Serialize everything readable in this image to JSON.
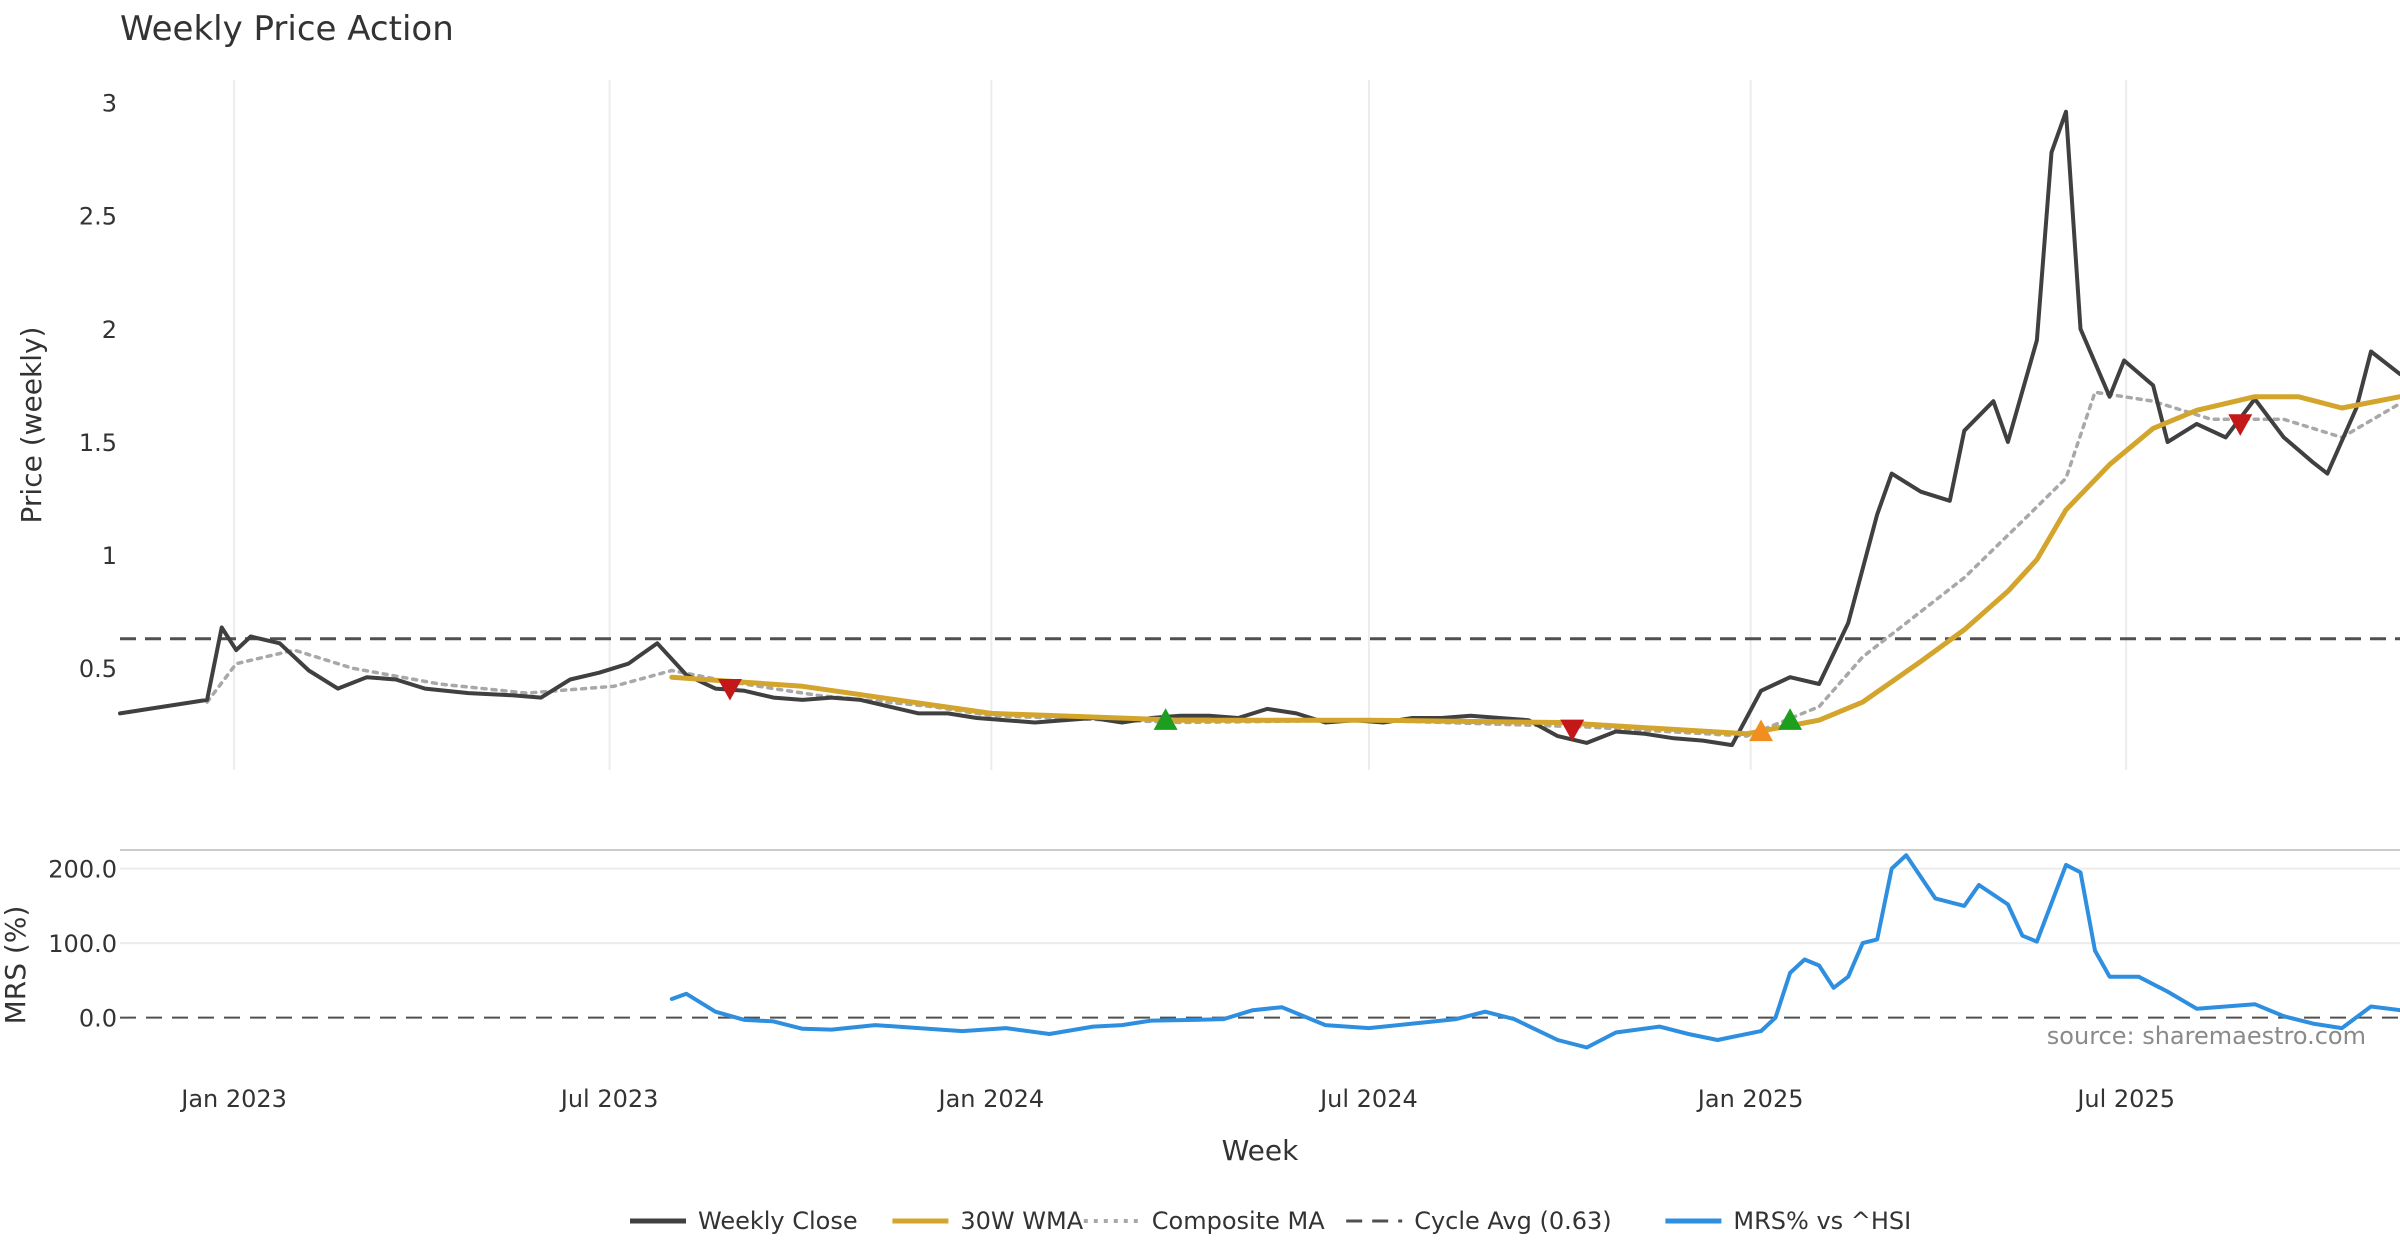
{
  "chart_data": {
    "type": "line",
    "title": "Weekly Price Action",
    "source": "source: sharemaestro.com",
    "x_axis": {
      "label": "Week",
      "range": [
        "2022-11-07",
        "2025-11-10"
      ],
      "ticks": [
        {
          "date": "2023-01-01",
          "label": "Jan 2023"
        },
        {
          "date": "2023-07-01",
          "label": "Jul 2023"
        },
        {
          "date": "2024-01-01",
          "label": "Jan 2024"
        },
        {
          "date": "2024-07-01",
          "label": "Jul 2024"
        },
        {
          "date": "2025-01-01",
          "label": "Jan 2025"
        },
        {
          "date": "2025-07-01",
          "label": "Jul 2025"
        }
      ]
    },
    "price_panel": {
      "ylabel": "Price (weekly)",
      "ylim": [
        0.05,
        3.1
      ],
      "yticks": [
        {
          "v": 0.5,
          "label": "0.5"
        },
        {
          "v": 1,
          "label": "1"
        },
        {
          "v": 1.5,
          "label": "1.5"
        },
        {
          "v": 2,
          "label": "2"
        },
        {
          "v": 2.5,
          "label": "2.5"
        },
        {
          "v": 3,
          "label": "3"
        }
      ],
      "cycle_avg": 0.63,
      "series": [
        {
          "name": "Weekly Close",
          "color": "#404040",
          "style": "solid",
          "points": [
            [
              "2022-11-07",
              0.3
            ],
            [
              "2022-11-21",
              0.32
            ],
            [
              "2022-12-05",
              0.34
            ],
            [
              "2022-12-19",
              0.36
            ],
            [
              "2022-12-26",
              0.68
            ],
            [
              "2023-01-02",
              0.58
            ],
            [
              "2023-01-09",
              0.64
            ],
            [
              "2023-01-23",
              0.61
            ],
            [
              "2023-02-06",
              0.49
            ],
            [
              "2023-02-20",
              0.41
            ],
            [
              "2023-03-06",
              0.46
            ],
            [
              "2023-03-20",
              0.45
            ],
            [
              "2023-04-03",
              0.41
            ],
            [
              "2023-04-24",
              0.39
            ],
            [
              "2023-05-15",
              0.38
            ],
            [
              "2023-05-29",
              0.37
            ],
            [
              "2023-06-12",
              0.45
            ],
            [
              "2023-06-26",
              0.48
            ],
            [
              "2023-07-10",
              0.52
            ],
            [
              "2023-07-24",
              0.61
            ],
            [
              "2023-08-07",
              0.47
            ],
            [
              "2023-08-21",
              0.41
            ],
            [
              "2023-09-04",
              0.4
            ],
            [
              "2023-09-18",
              0.37
            ],
            [
              "2023-10-02",
              0.36
            ],
            [
              "2023-10-16",
              0.37
            ],
            [
              "2023-10-30",
              0.36
            ],
            [
              "2023-11-13",
              0.33
            ],
            [
              "2023-11-27",
              0.3
            ],
            [
              "2023-12-11",
              0.3
            ],
            [
              "2023-12-25",
              0.28
            ],
            [
              "2024-01-08",
              0.27
            ],
            [
              "2024-01-22",
              0.26
            ],
            [
              "2024-02-05",
              0.27
            ],
            [
              "2024-02-19",
              0.28
            ],
            [
              "2024-03-04",
              0.26
            ],
            [
              "2024-03-18",
              0.28
            ],
            [
              "2024-04-01",
              0.29
            ],
            [
              "2024-04-15",
              0.29
            ],
            [
              "2024-04-29",
              0.28
            ],
            [
              "2024-05-13",
              0.32
            ],
            [
              "2024-05-27",
              0.3
            ],
            [
              "2024-06-10",
              0.26
            ],
            [
              "2024-06-24",
              0.27
            ],
            [
              "2024-07-08",
              0.26
            ],
            [
              "2024-07-22",
              0.28
            ],
            [
              "2024-08-05",
              0.28
            ],
            [
              "2024-08-19",
              0.29
            ],
            [
              "2024-09-02",
              0.28
            ],
            [
              "2024-09-16",
              0.27
            ],
            [
              "2024-09-30",
              0.2
            ],
            [
              "2024-10-14",
              0.17
            ],
            [
              "2024-10-28",
              0.22
            ],
            [
              "2024-11-11",
              0.21
            ],
            [
              "2024-11-25",
              0.19
            ],
            [
              "2024-12-09",
              0.18
            ],
            [
              "2024-12-23",
              0.16
            ],
            [
              "2025-01-06",
              0.4
            ],
            [
              "2025-01-20",
              0.46
            ],
            [
              "2025-02-03",
              0.43
            ],
            [
              "2025-02-17",
              0.7
            ],
            [
              "2025-03-03",
              1.18
            ],
            [
              "2025-03-10",
              1.36
            ],
            [
              "2025-03-24",
              1.28
            ],
            [
              "2025-04-07",
              1.24
            ],
            [
              "2025-04-14",
              1.55
            ],
            [
              "2025-04-28",
              1.68
            ],
            [
              "2025-05-05",
              1.5
            ],
            [
              "2025-05-19",
              1.95
            ],
            [
              "2025-05-26",
              2.78
            ],
            [
              "2025-06-02",
              2.96
            ],
            [
              "2025-06-09",
              2.0
            ],
            [
              "2025-06-23",
              1.7
            ],
            [
              "2025-06-30",
              1.86
            ],
            [
              "2025-07-14",
              1.75
            ],
            [
              "2025-07-21",
              1.5
            ],
            [
              "2025-08-04",
              1.58
            ],
            [
              "2025-08-18",
              1.52
            ],
            [
              "2025-09-01",
              1.69
            ],
            [
              "2025-09-15",
              1.52
            ],
            [
              "2025-09-29",
              1.41
            ],
            [
              "2025-10-06",
              1.36
            ],
            [
              "2025-10-20",
              1.65
            ],
            [
              "2025-10-27",
              1.9
            ],
            [
              "2025-11-10",
              1.8
            ]
          ]
        },
        {
          "name": "30W WMA",
          "color": "#d4a52c",
          "style": "solid",
          "points": [
            [
              "2023-07-31",
              0.46
            ],
            [
              "2023-10-02",
              0.42
            ],
            [
              "2024-01-01",
              0.3
            ],
            [
              "2024-04-01",
              0.27
            ],
            [
              "2024-07-01",
              0.27
            ],
            [
              "2024-10-01",
              0.26
            ],
            [
              "2024-12-30",
              0.21
            ],
            [
              "2025-02-03",
              0.27
            ],
            [
              "2025-02-24",
              0.35
            ],
            [
              "2025-03-24",
              0.53
            ],
            [
              "2025-04-14",
              0.67
            ],
            [
              "2025-05-05",
              0.84
            ],
            [
              "2025-05-19",
              0.98
            ],
            [
              "2025-06-02",
              1.2
            ],
            [
              "2025-06-23",
              1.4
            ],
            [
              "2025-07-14",
              1.56
            ],
            [
              "2025-08-04",
              1.64
            ],
            [
              "2025-09-01",
              1.7
            ],
            [
              "2025-09-22",
              1.7
            ],
            [
              "2025-10-13",
              1.65
            ],
            [
              "2025-11-10",
              1.7
            ]
          ]
        },
        {
          "name": "Composite MA",
          "color": "#a8a8a8",
          "style": "dotted",
          "points": [
            [
              "2022-12-19",
              0.35
            ],
            [
              "2023-01-02",
              0.52
            ],
            [
              "2023-01-30",
              0.58
            ],
            [
              "2023-02-27",
              0.5
            ],
            [
              "2023-04-10",
              0.43
            ],
            [
              "2023-05-22",
              0.39
            ],
            [
              "2023-07-03",
              0.42
            ],
            [
              "2023-07-31",
              0.49
            ],
            [
              "2023-08-28",
              0.44
            ],
            [
              "2023-10-09",
              0.38
            ],
            [
              "2023-12-04",
              0.33
            ],
            [
              "2024-01-01",
              0.29
            ],
            [
              "2024-04-01",
              0.26
            ],
            [
              "2024-07-01",
              0.27
            ],
            [
              "2024-10-14",
              0.24
            ],
            [
              "2024-12-30",
              0.2
            ],
            [
              "2025-02-03",
              0.33
            ],
            [
              "2025-02-24",
              0.55
            ],
            [
              "2025-03-17",
              0.7
            ],
            [
              "2025-04-14",
              0.9
            ],
            [
              "2025-05-12",
              1.15
            ],
            [
              "2025-06-02",
              1.34
            ],
            [
              "2025-06-16",
              1.72
            ],
            [
              "2025-07-14",
              1.68
            ],
            [
              "2025-08-11",
              1.6
            ],
            [
              "2025-09-15",
              1.6
            ],
            [
              "2025-10-13",
              1.52
            ],
            [
              "2025-11-10",
              1.67
            ]
          ]
        }
      ],
      "markers": [
        {
          "date": "2023-08-28",
          "y": 0.41,
          "shape": "triangle-down",
          "color": "#c41818"
        },
        {
          "date": "2024-03-25",
          "y": 0.27,
          "shape": "triangle-up",
          "color": "#1e9e1e"
        },
        {
          "date": "2024-10-07",
          "y": 0.23,
          "shape": "triangle-down",
          "color": "#c41818"
        },
        {
          "date": "2025-01-06",
          "y": 0.22,
          "shape": "triangle-up",
          "color": "#f08f20"
        },
        {
          "date": "2025-01-20",
          "y": 0.27,
          "shape": "triangle-up",
          "color": "#1e9e1e"
        },
        {
          "date": "2025-08-25",
          "y": 1.58,
          "shape": "triangle-down",
          "color": "#c41818"
        }
      ]
    },
    "mrs_panel": {
      "ylabel": "MRS (%)",
      "ylim": [
        -30,
        225
      ],
      "yticks": [
        {
          "v": 0,
          "label": "0.0"
        },
        {
          "v": 100,
          "label": "100.0"
        },
        {
          "v": 200,
          "label": "200.0"
        }
      ],
      "series": [
        {
          "name": "MRS% vs ^HSI",
          "color": "#2e8fe0",
          "points": [
            [
              "2023-07-31",
              25
            ],
            [
              "2023-08-07",
              32
            ],
            [
              "2023-08-21",
              8
            ],
            [
              "2023-09-04",
              -3
            ],
            [
              "2023-09-18",
              -5
            ],
            [
              "2023-10-02",
              -15
            ],
            [
              "2023-10-16",
              -16
            ],
            [
              "2023-11-06",
              -10
            ],
            [
              "2023-11-27",
              -14
            ],
            [
              "2023-12-18",
              -18
            ],
            [
              "2024-01-08",
              -14
            ],
            [
              "2024-01-29",
              -22
            ],
            [
              "2024-02-19",
              -12
            ],
            [
              "2024-03-04",
              -10
            ],
            [
              "2024-03-18",
              -4
            ],
            [
              "2024-04-08",
              -3
            ],
            [
              "2024-04-22",
              -2
            ],
            [
              "2024-05-06",
              10
            ],
            [
              "2024-05-20",
              14
            ],
            [
              "2024-06-10",
              -10
            ],
            [
              "2024-07-01",
              -14
            ],
            [
              "2024-07-22",
              -8
            ],
            [
              "2024-08-12",
              -2
            ],
            [
              "2024-08-26",
              8
            ],
            [
              "2024-09-09",
              -2
            ],
            [
              "2024-09-30",
              -30
            ],
            [
              "2024-10-14",
              -40
            ],
            [
              "2024-10-28",
              -20
            ],
            [
              "2024-11-18",
              -12
            ],
            [
              "2024-12-02",
              -22
            ],
            [
              "2024-12-16",
              -30
            ],
            [
              "2025-01-06",
              -18
            ],
            [
              "2025-01-13",
              0
            ],
            [
              "2025-01-20",
              60
            ],
            [
              "2025-01-27",
              78
            ],
            [
              "2025-02-03",
              70
            ],
            [
              "2025-02-10",
              40
            ],
            [
              "2025-02-17",
              55
            ],
            [
              "2025-02-24",
              100
            ],
            [
              "2025-03-03",
              105
            ],
            [
              "2025-03-10",
              200
            ],
            [
              "2025-03-17",
              218
            ],
            [
              "2025-03-31",
              160
            ],
            [
              "2025-04-14",
              150
            ],
            [
              "2025-04-21",
              178
            ],
            [
              "2025-05-05",
              152
            ],
            [
              "2025-05-12",
              110
            ],
            [
              "2025-05-19",
              102
            ],
            [
              "2025-06-02",
              205
            ],
            [
              "2025-06-09",
              195
            ],
            [
              "2025-06-16",
              90
            ],
            [
              "2025-06-23",
              55
            ],
            [
              "2025-07-07",
              55
            ],
            [
              "2025-07-21",
              35
            ],
            [
              "2025-08-04",
              12
            ],
            [
              "2025-08-18",
              15
            ],
            [
              "2025-09-01",
              18
            ],
            [
              "2025-09-15",
              2
            ],
            [
              "2025-09-29",
              -8
            ],
            [
              "2025-10-13",
              -14
            ],
            [
              "2025-10-27",
              15
            ],
            [
              "2025-11-10",
              10
            ]
          ]
        }
      ]
    },
    "legend": {
      "placement": "bottom-center",
      "items": [
        {
          "label": "Weekly Close",
          "color": "#404040",
          "style": "solid"
        },
        {
          "label": "30W WMA",
          "color": "#d4a52c",
          "style": "solid"
        },
        {
          "label": "Composite MA",
          "color": "#a8a8a8",
          "style": "dotted"
        },
        {
          "label": "Cycle Avg (0.63)",
          "color": "#505050",
          "style": "dashed"
        },
        {
          "label": "MRS% vs ^HSI",
          "color": "#2e8fe0",
          "style": "solid"
        }
      ]
    }
  }
}
